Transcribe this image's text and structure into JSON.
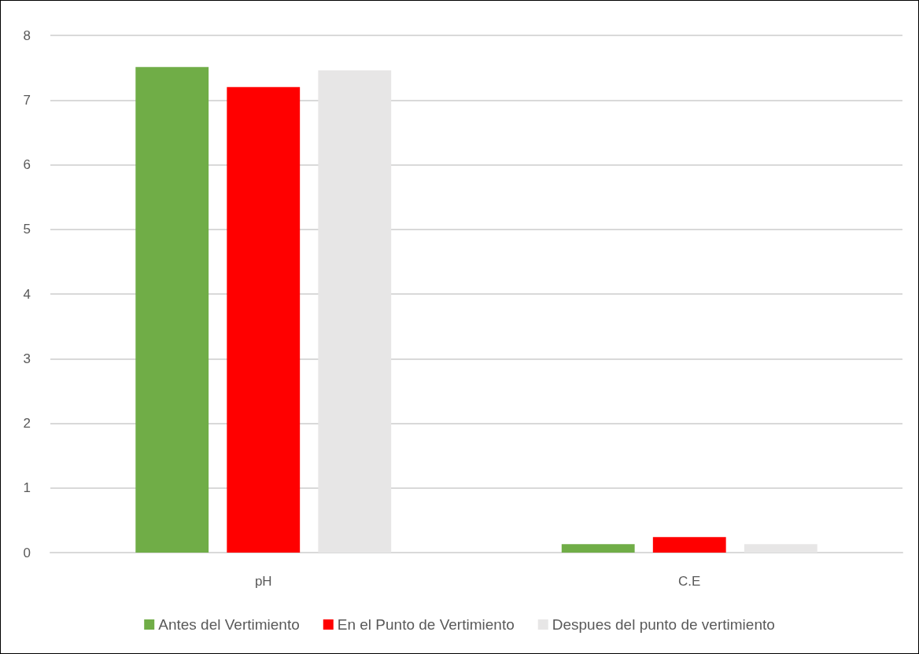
{
  "chart_data": {
    "type": "bar",
    "categories": [
      "pH",
      "C.E"
    ],
    "series": [
      {
        "name": "Antes del Vertimiento",
        "color": "#70ad47",
        "values": [
          7.51,
          0.13
        ]
      },
      {
        "name": "En el Punto de Vertimiento",
        "color": "#ff0000",
        "values": [
          7.2,
          0.24
        ]
      },
      {
        "name": "Despues del punto de vertimiento",
        "color": "#e7e6e6",
        "values": [
          7.46,
          0.13
        ]
      }
    ],
    "ylim": [
      0,
      8
    ],
    "yticks": [
      0,
      1,
      2,
      3,
      4,
      5,
      6,
      7,
      8
    ],
    "grid": "y",
    "legend": "bottom"
  }
}
